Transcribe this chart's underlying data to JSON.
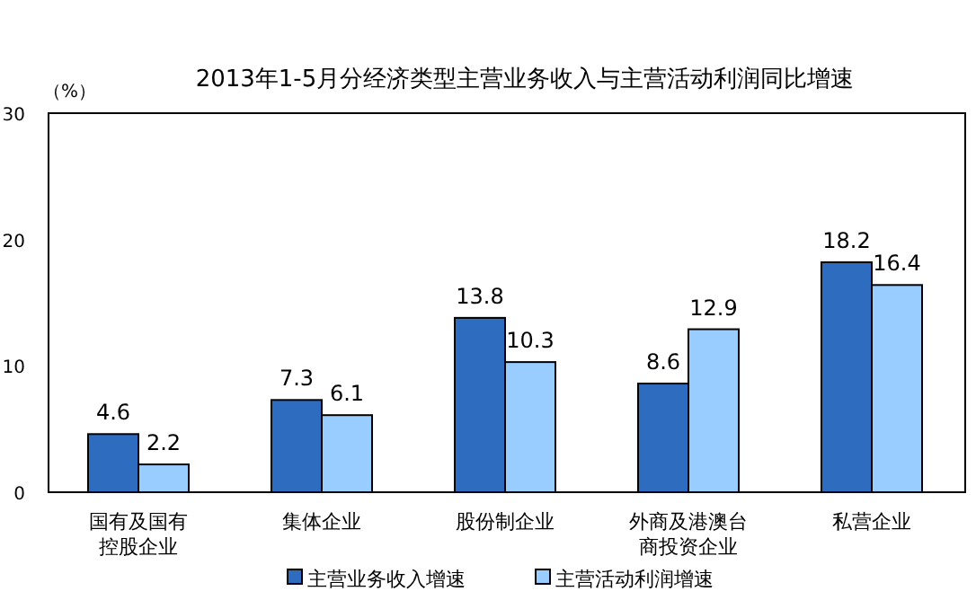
{
  "chart_data": {
    "type": "bar",
    "title": "2013年1-5月分经济类型主营业务收入与主营活动利润同比增速",
    "ylabel": "（%）",
    "categories": [
      "国有及国有控股企业",
      "集体企业",
      "股份制企业",
      "外商及港澳台商投资企业",
      "私营企业"
    ],
    "series": [
      {
        "name": "主营业务收入增速",
        "color": "#2e6cc0",
        "values": [
          4.6,
          7.3,
          13.8,
          8.6,
          18.2
        ]
      },
      {
        "name": "主营活动利润增速",
        "color": "#99ccff",
        "values": [
          2.2,
          6.1,
          10.3,
          12.9,
          16.4
        ]
      }
    ],
    "ylim": [
      0,
      30
    ],
    "yticks": [
      0,
      10,
      20,
      30
    ],
    "data_labels": true,
    "grid": false,
    "legend": "bottom"
  }
}
